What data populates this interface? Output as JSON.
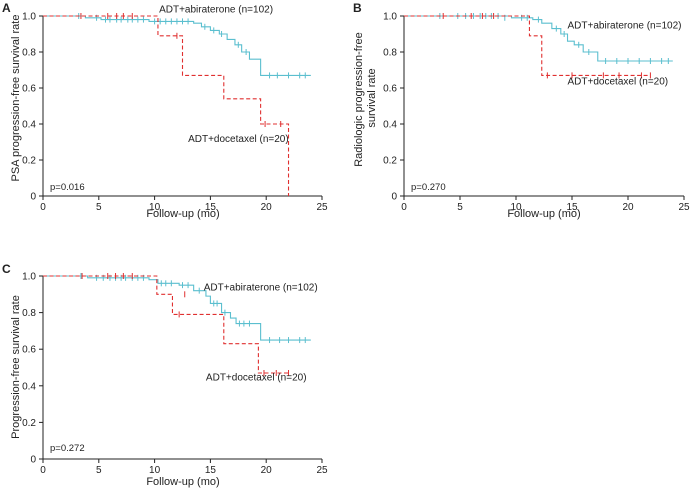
{
  "chart_data": [
    {
      "panel": "A",
      "type": "line",
      "title": "",
      "xlabel": "Follow-up (mo)",
      "ylabel": [
        "PSA progression-free survival rate"
      ],
      "xlim": [
        0,
        25
      ],
      "ylim": [
        0,
        1.0
      ],
      "xticks": [
        "0",
        "5",
        "10",
        "15",
        "20",
        "25"
      ],
      "yticks": [
        "0",
        "0.2",
        "0.4",
        "0.6",
        "0.8",
        "1.0"
      ],
      "p_value": "p=0.016",
      "series": [
        {
          "name": "ADT+abiraterone (n=102)",
          "color": "#5bbfcf",
          "dash": "solid",
          "steps": [
            [
              0,
              1.0
            ],
            [
              3.8,
              0.99
            ],
            [
              5.2,
              0.98
            ],
            [
              9.5,
              0.97
            ],
            [
              13.5,
              0.96
            ],
            [
              14.2,
              0.94
            ],
            [
              15.0,
              0.92
            ],
            [
              15.8,
              0.9
            ],
            [
              16.5,
              0.87
            ],
            [
              17.2,
              0.84
            ],
            [
              17.8,
              0.8
            ],
            [
              18.5,
              0.76
            ],
            [
              19.5,
              0.67
            ],
            [
              24,
              0.67
            ]
          ],
          "censors": [
            [
              3.2,
              1.0
            ],
            [
              4.8,
              0.99
            ],
            [
              5.6,
              0.98
            ],
            [
              6.0,
              0.98
            ],
            [
              6.6,
              0.98
            ],
            [
              7.0,
              0.98
            ],
            [
              7.6,
              0.98
            ],
            [
              8.0,
              0.98
            ],
            [
              8.5,
              0.98
            ],
            [
              9.0,
              0.98
            ],
            [
              10.0,
              0.97
            ],
            [
              10.5,
              0.97
            ],
            [
              11.0,
              0.97
            ],
            [
              11.5,
              0.97
            ],
            [
              12.0,
              0.97
            ],
            [
              12.5,
              0.97
            ],
            [
              13.0,
              0.97
            ],
            [
              14.5,
              0.94
            ],
            [
              15.3,
              0.92
            ],
            [
              16.0,
              0.9
            ],
            [
              17.5,
              0.84
            ],
            [
              18.2,
              0.8
            ],
            [
              20.3,
              0.67
            ],
            [
              21.0,
              0.67
            ],
            [
              22.0,
              0.67
            ],
            [
              23.0,
              0.67
            ],
            [
              23.5,
              0.67
            ]
          ],
          "label_anchor": [
            10.4,
            1.02
          ]
        },
        {
          "name": "ADT+docetaxel (n=20)",
          "color": "#e03030",
          "dash": "dashed",
          "steps": [
            [
              0,
              1.0
            ],
            [
              10.3,
              0.89
            ],
            [
              12.5,
              0.67
            ],
            [
              16.2,
              0.54
            ],
            [
              19.5,
              0.4
            ],
            [
              22.0,
              0.0
            ]
          ],
          "censors": [
            [
              3.4,
              1.0
            ],
            [
              5.8,
              1.0
            ],
            [
              6.6,
              1.0
            ],
            [
              7.2,
              1.0
            ],
            [
              8.0,
              1.0
            ],
            [
              12.0,
              0.89
            ],
            [
              19.9,
              0.4
            ],
            [
              21.3,
              0.4
            ]
          ],
          "label_anchor": [
            13.0,
            0.3
          ]
        }
      ]
    },
    {
      "panel": "B",
      "type": "line",
      "title": "",
      "xlabel": "Follow-up (mo)",
      "ylabel": [
        "Radiologic progression-free",
        "survival rate"
      ],
      "xlim": [
        0,
        25
      ],
      "ylim": [
        0,
        1.0
      ],
      "xticks": [
        "0",
        "5",
        "10",
        "15",
        "20",
        "25"
      ],
      "yticks": [
        "0",
        "0.2",
        "0.4",
        "0.6",
        "0.8",
        "1.0"
      ],
      "p_value": "p=0.270",
      "series": [
        {
          "name": "ADT+abiraterone (n=102)",
          "color": "#5bbfcf",
          "dash": "solid",
          "steps": [
            [
              0,
              1.0
            ],
            [
              9.6,
              0.99
            ],
            [
              11.5,
              0.98
            ],
            [
              12.3,
              0.96
            ],
            [
              13.2,
              0.93
            ],
            [
              14.0,
              0.9
            ],
            [
              14.6,
              0.86
            ],
            [
              15.2,
              0.84
            ],
            [
              16.0,
              0.8
            ],
            [
              17.3,
              0.75
            ],
            [
              24,
              0.75
            ]
          ],
          "censors": [
            [
              3.2,
              1.0
            ],
            [
              4.8,
              1.0
            ],
            [
              5.5,
              1.0
            ],
            [
              6.2,
              1.0
            ],
            [
              6.8,
              1.0
            ],
            [
              7.3,
              1.0
            ],
            [
              7.8,
              1.0
            ],
            [
              8.4,
              1.0
            ],
            [
              9.0,
              0.99
            ],
            [
              10.5,
              0.99
            ],
            [
              11.0,
              0.99
            ],
            [
              12.0,
              0.98
            ],
            [
              13.6,
              0.93
            ],
            [
              14.3,
              0.9
            ],
            [
              15.6,
              0.84
            ],
            [
              16.5,
              0.8
            ],
            [
              18.0,
              0.75
            ],
            [
              19.0,
              0.75
            ],
            [
              20.0,
              0.75
            ],
            [
              21.0,
              0.75
            ],
            [
              22.0,
              0.75
            ],
            [
              23.0,
              0.75
            ],
            [
              23.6,
              0.75
            ]
          ],
          "label_anchor": [
            14.6,
            0.93
          ]
        },
        {
          "name": "ADT+docetaxel (n=20)",
          "color": "#e03030",
          "dash": "dashed",
          "steps": [
            [
              0,
              1.0
            ],
            [
              11.2,
              0.89
            ],
            [
              12.3,
              0.67
            ],
            [
              22.0,
              0.67
            ]
          ],
          "censors": [
            [
              3.5,
              1.0
            ],
            [
              6.0,
              1.0
            ],
            [
              7.0,
              1.0
            ],
            [
              8.0,
              1.0
            ],
            [
              12.8,
              0.67
            ],
            [
              15.0,
              0.67
            ],
            [
              17.8,
              0.67
            ],
            [
              19.2,
              0.67
            ],
            [
              21.2,
              0.67
            ],
            [
              22.0,
              0.67
            ]
          ],
          "label_anchor": [
            14.6,
            0.62
          ]
        }
      ]
    },
    {
      "panel": "C",
      "type": "line",
      "title": "",
      "xlabel": "Follow-up (mo)",
      "ylabel": [
        "Progression-free survival rate"
      ],
      "xlim": [
        0,
        25
      ],
      "ylim": [
        0,
        1.0
      ],
      "xticks": [
        "0",
        "5",
        "10",
        "15",
        "20",
        "25"
      ],
      "yticks": [
        "0",
        "0.2",
        "0.4",
        "0.6",
        "0.8",
        "1.0"
      ],
      "p_value": "p=0.272",
      "series": [
        {
          "name": "ADT+abiraterone (n=102)",
          "color": "#5bbfcf",
          "dash": "solid",
          "steps": [
            [
              0,
              1.0
            ],
            [
              4.0,
              0.99
            ],
            [
              9.5,
              0.98
            ],
            [
              10.3,
              0.96
            ],
            [
              12.2,
              0.95
            ],
            [
              13.5,
              0.92
            ],
            [
              14.6,
              0.89
            ],
            [
              15.0,
              0.85
            ],
            [
              16.0,
              0.8
            ],
            [
              16.8,
              0.77
            ],
            [
              17.3,
              0.74
            ],
            [
              19.5,
              0.65
            ],
            [
              24,
              0.65
            ]
          ],
          "censors": [
            [
              3.4,
              1.0
            ],
            [
              4.8,
              0.99
            ],
            [
              5.4,
              0.99
            ],
            [
              6.0,
              0.99
            ],
            [
              6.5,
              0.99
            ],
            [
              7.0,
              0.99
            ],
            [
              7.4,
              0.99
            ],
            [
              8.0,
              0.99
            ],
            [
              8.5,
              0.99
            ],
            [
              9.0,
              0.99
            ],
            [
              10.6,
              0.96
            ],
            [
              11.0,
              0.96
            ],
            [
              11.5,
              0.96
            ],
            [
              12.5,
              0.95
            ],
            [
              13.0,
              0.95
            ],
            [
              14.0,
              0.92
            ],
            [
              15.3,
              0.85
            ],
            [
              15.6,
              0.85
            ],
            [
              16.3,
              0.8
            ],
            [
              17.6,
              0.74
            ],
            [
              18.0,
              0.74
            ],
            [
              18.5,
              0.74
            ],
            [
              20.3,
              0.65
            ],
            [
              21.2,
              0.65
            ],
            [
              22.0,
              0.65
            ],
            [
              23.0,
              0.65
            ],
            [
              23.5,
              0.65
            ]
          ],
          "label_anchor": [
            14.4,
            0.92
          ]
        },
        {
          "name": "ADT+docetaxel (n=20)",
          "color": "#e03030",
          "dash": "dashed",
          "steps": [
            [
              0,
              1.0
            ],
            [
              10.2,
              0.9
            ],
            [
              11.6,
              0.79
            ],
            [
              16.2,
              0.63
            ],
            [
              19.3,
              0.47
            ],
            [
              22.0,
              0.47
            ]
          ],
          "censors": [
            [
              3.5,
              1.0
            ],
            [
              5.8,
              1.0
            ],
            [
              6.5,
              1.0
            ],
            [
              7.2,
              1.0
            ],
            [
              8.0,
              1.0
            ],
            [
              12.7,
              0.9
            ],
            [
              12.2,
              0.79
            ],
            [
              19.8,
              0.47
            ],
            [
              20.9,
              0.47
            ],
            [
              22.0,
              0.47
            ]
          ],
          "label_anchor": [
            14.6,
            0.43
          ]
        }
      ]
    }
  ]
}
